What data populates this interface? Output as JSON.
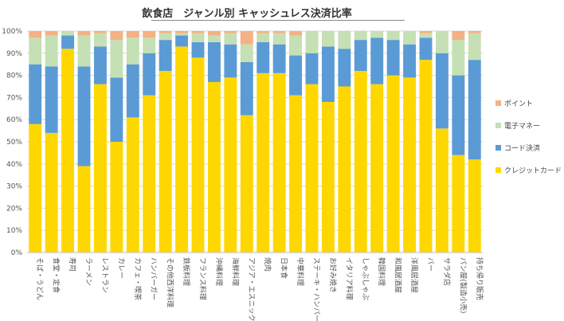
{
  "chart_data": {
    "type": "bar",
    "stacked": true,
    "normalized": true,
    "title": "飲食店　ジャンル別 キャッシュレス決済比率",
    "xlabel": "",
    "ylabel": "",
    "ylim": [
      0,
      100
    ],
    "y_tick_labels": [
      "0%",
      "10%",
      "20%",
      "30%",
      "40%",
      "50%",
      "60%",
      "70%",
      "80%",
      "90%",
      "100%"
    ],
    "grid": true,
    "legend_position": "right",
    "categories": [
      "そば・うどん",
      "食堂・定食",
      "寿司",
      "ラーメン",
      "レストラン",
      "カレー",
      "カフェ・喫茶",
      "ハンバーガー",
      "その他西洋料理",
      "鉄板料理",
      "フランス料理",
      "沖縄料理",
      "海鮮料理",
      "アジア・エスニック",
      "焼肉",
      "日本食",
      "中華料理",
      "ステーキ・ハンバーグ",
      "お好み焼き",
      "イタリア料理",
      "しゃぶしゃぶ",
      "韓国料理",
      "和風居酒屋",
      "洋風居酒屋",
      "バー",
      "サラダ店",
      "パン屋(製造小売)",
      "持ち帰り販売"
    ],
    "series": [
      {
        "name": "クレジットカード",
        "color": "#FFD700",
        "values": [
          58,
          54,
          92,
          39,
          76,
          50,
          61,
          71,
          82,
          93,
          88,
          77,
          79,
          62,
          81,
          81,
          71,
          76,
          68,
          75,
          82,
          76,
          80,
          79,
          87,
          56,
          44,
          42
        ]
      },
      {
        "name": "コード決済",
        "color": "#5B9BD5",
        "values": [
          27,
          30,
          6,
          45,
          17,
          29,
          24,
          19,
          14,
          5,
          7,
          18,
          15,
          24,
          14,
          13,
          18,
          14,
          25,
          17,
          14,
          21,
          16,
          15,
          10,
          34,
          36,
          45
        ]
      },
      {
        "name": "電子マネー",
        "color": "#C5E0B4",
        "values": [
          12,
          14,
          2,
          14,
          6,
          17,
          12,
          7,
          3,
          1,
          4,
          3,
          5,
          8,
          4,
          5,
          9,
          10,
          7,
          8,
          4,
          3,
          4,
          6,
          2,
          10,
          16,
          12
        ]
      },
      {
        "name": "ポイント",
        "color": "#F4B183",
        "values": [
          3,
          2,
          0,
          2,
          1,
          4,
          3,
          3,
          1,
          1,
          1,
          2,
          1,
          6,
          1,
          1,
          2,
          0,
          0,
          0,
          0,
          0,
          0,
          0,
          1,
          0,
          4,
          1
        ]
      }
    ]
  }
}
